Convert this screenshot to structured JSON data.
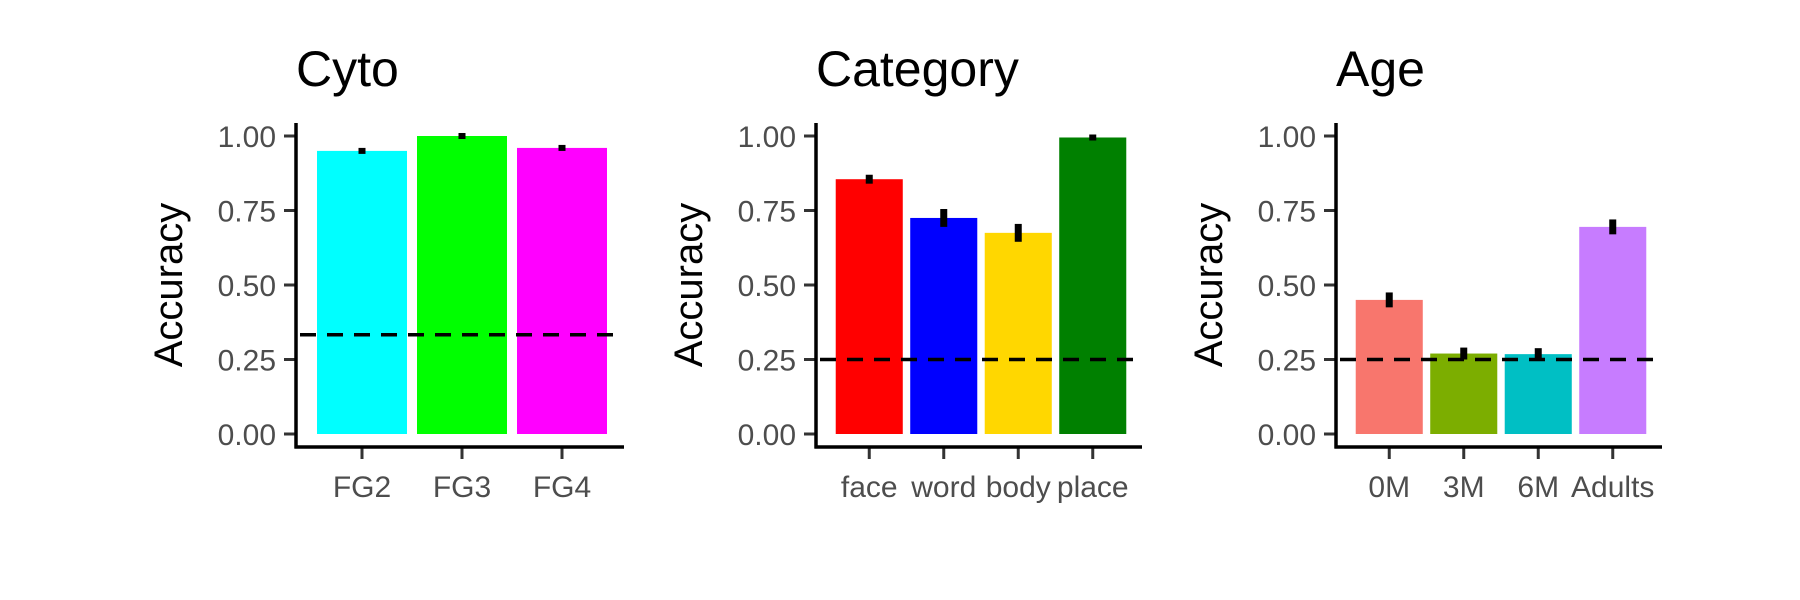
{
  "chart_data": [
    {
      "type": "bar",
      "title": "Cyto",
      "ylabel": "Accuracy",
      "xlabel": "",
      "ylim": [
        0,
        1
      ],
      "yticks": [
        "0.00",
        "0.25",
        "0.50",
        "0.75",
        "1.00"
      ],
      "categories": [
        "FG2",
        "FG3",
        "FG4"
      ],
      "values": [
        0.95,
        1.0,
        0.96
      ],
      "error": [
        0.01,
        0.0,
        0.005
      ],
      "colors": [
        "#00FFFF",
        "#00FF00",
        "#FF00FF"
      ],
      "chance_level": 0.333,
      "grid": false,
      "legend": "none"
    },
    {
      "type": "bar",
      "title": "Category",
      "ylabel": "Accuracy",
      "xlabel": "",
      "ylim": [
        0,
        1
      ],
      "yticks": [
        "0.00",
        "0.25",
        "0.50",
        "0.75",
        "1.00"
      ],
      "categories": [
        "face",
        "word",
        "body",
        "place"
      ],
      "values": [
        0.855,
        0.725,
        0.675,
        0.995
      ],
      "error": [
        0.015,
        0.03,
        0.03,
        0.003
      ],
      "colors": [
        "#FF0000",
        "#0000FF",
        "#FFD700",
        "#008000"
      ],
      "chance_level": 0.25,
      "grid": false,
      "legend": "none"
    },
    {
      "type": "bar",
      "title": "Age",
      "ylabel": "Accuracy",
      "xlabel": "",
      "ylim": [
        0,
        1
      ],
      "yticks": [
        "0.00",
        "0.25",
        "0.50",
        "0.75",
        "1.00"
      ],
      "categories": [
        "0M",
        "3M",
        "6M",
        "Adults"
      ],
      "values": [
        0.45,
        0.27,
        0.268,
        0.695
      ],
      "error": [
        0.025,
        0.02,
        0.02,
        0.025
      ],
      "colors": [
        "#F8766D",
        "#7CAE00",
        "#00BFC4",
        "#C77CFF"
      ],
      "chance_level": 0.25,
      "grid": false,
      "legend": "none"
    }
  ]
}
